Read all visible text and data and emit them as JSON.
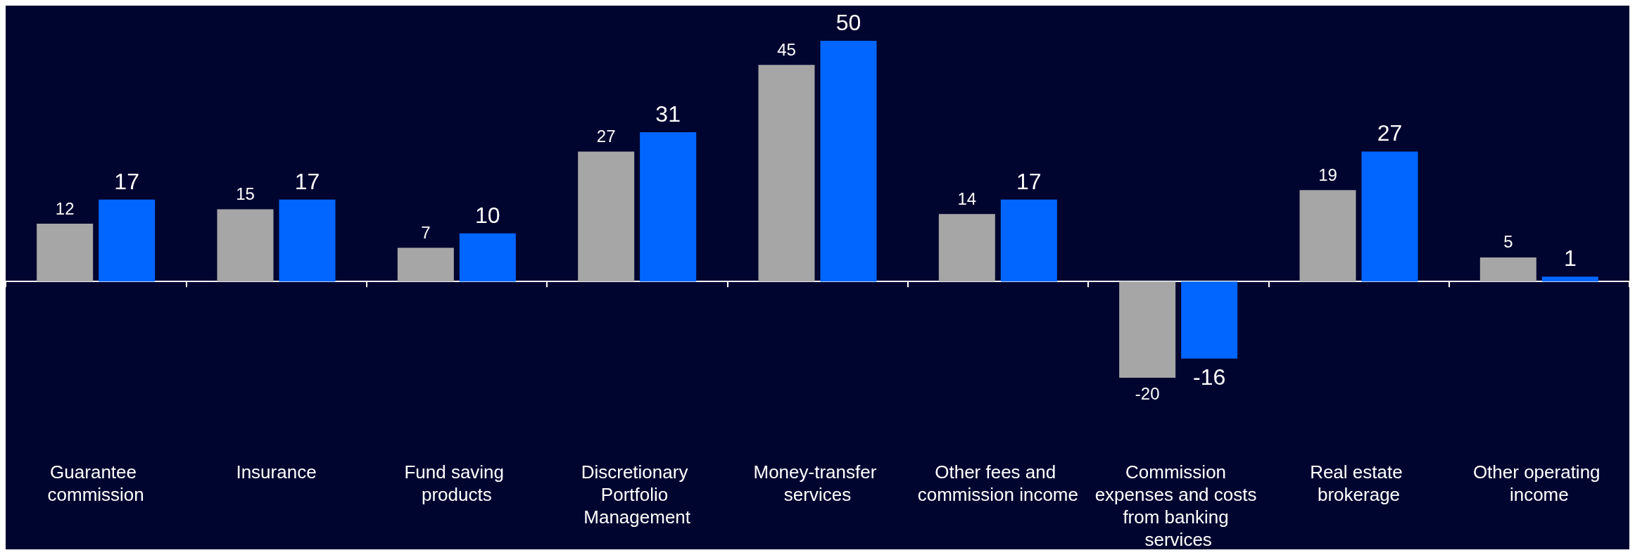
{
  "chart_data": {
    "type": "bar",
    "categories": [
      "Guarantee commission",
      "Insurance",
      "Fund saving products",
      "Discretionary Portfolio Management",
      "Money-transfer services",
      "Other fees and commission income",
      "Commission expenses and costs from banking services",
      "Real estate brokerage",
      "Other operating income"
    ],
    "series": [
      {
        "color": "#a6a6a6",
        "values": [
          12,
          15,
          7,
          27,
          45,
          14,
          -20,
          19,
          5
        ]
      },
      {
        "color": "#0066ff",
        "values": [
          17,
          17,
          10,
          31,
          50,
          17,
          -16,
          27,
          1
        ]
      }
    ],
    "data_labels": true
  }
}
